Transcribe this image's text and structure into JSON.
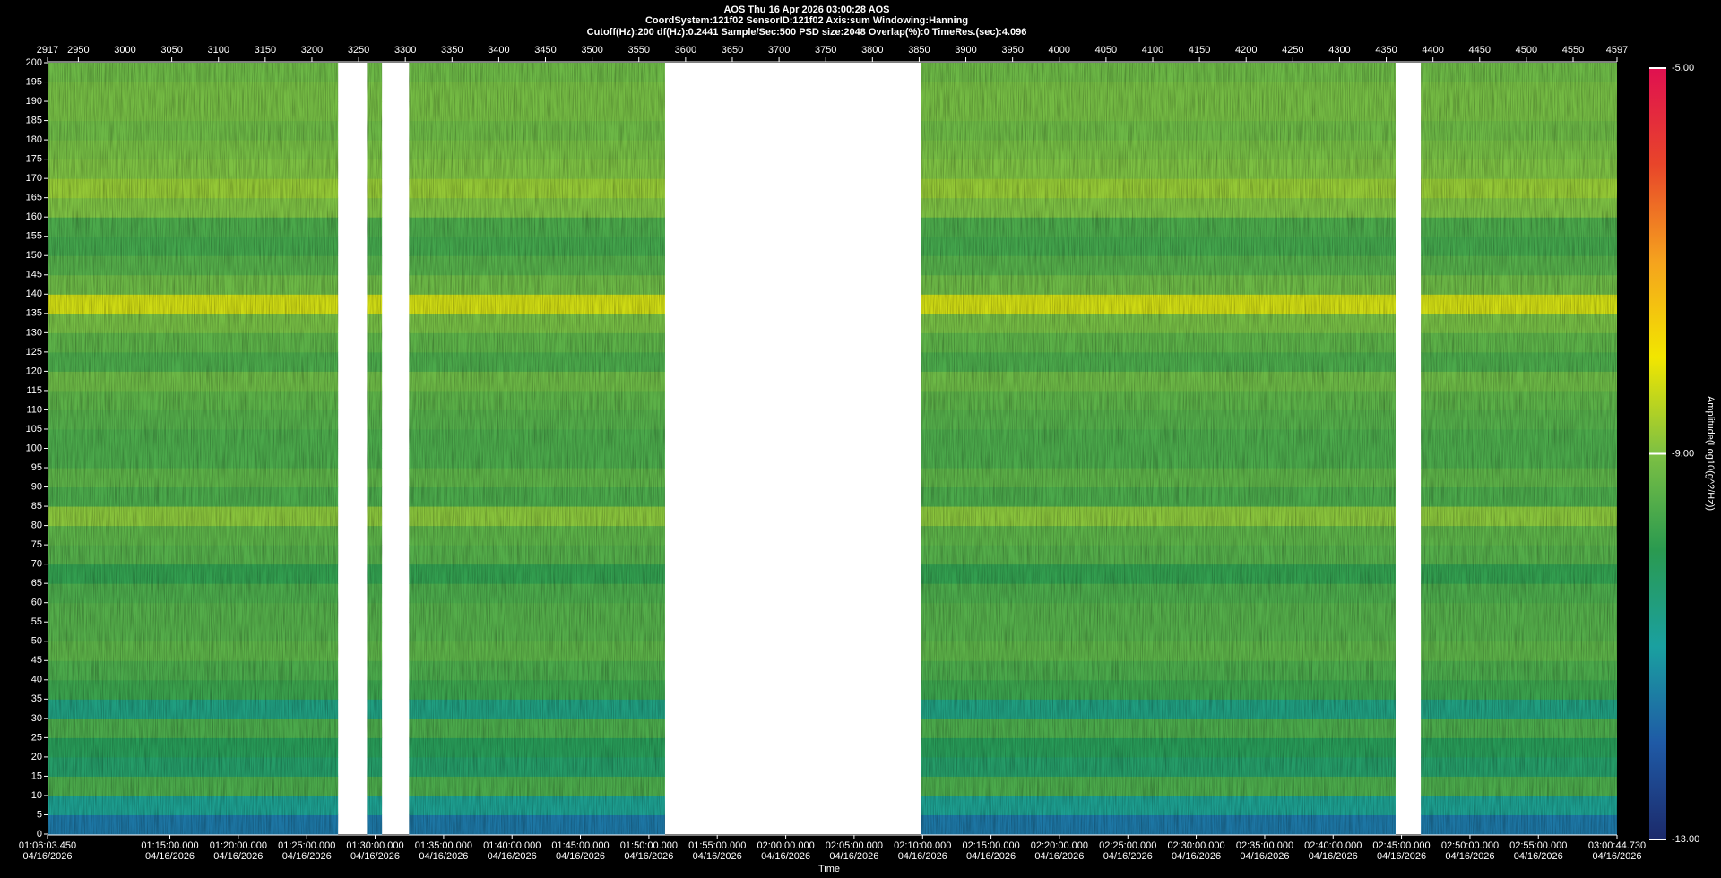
{
  "chart_data": {
    "type": "heatmap",
    "title": "AOS  Thu 16 Apr 2026 03:00:28  AOS",
    "subtitle": "CoordSystem:121f02   SensorID:121f02   Axis:sum    Windowing:Hanning",
    "settings_line": "Cutoff(Hz):200    df(Hz):0.2441    Sample/Sec:500    PSD size:2048    Overlap(%):0    TimeRes.(sec):4.096",
    "x_label": "Time",
    "colorbar_label": "Amplitude(Log10(g^2/Hz))",
    "xlim": [
      2917,
      4597
    ],
    "xticks": [
      2917,
      2950,
      3000,
      3050,
      3100,
      3150,
      3200,
      3250,
      3300,
      3350,
      3400,
      3450,
      3500,
      3550,
      3600,
      3650,
      3700,
      3750,
      3800,
      3850,
      3900,
      3950,
      4000,
      4050,
      4100,
      4150,
      4200,
      4250,
      4300,
      4350,
      4400,
      4450,
      4500,
      4550,
      4597
    ],
    "x2ticks": [
      {
        "value": 2917,
        "label": "01:06:03.450"
      },
      {
        "value": 3048,
        "label": "01:15:00.000"
      },
      {
        "value": 3121.2,
        "label": "01:20:00.000"
      },
      {
        "value": 3194.5,
        "label": "01:25:00.000"
      },
      {
        "value": 3267.7,
        "label": "01:30:00.000"
      },
      {
        "value": 3341,
        "label": "01:35:00.000"
      },
      {
        "value": 3414.2,
        "label": "01:40:00.000"
      },
      {
        "value": 3487.4,
        "label": "01:45:00.000"
      },
      {
        "value": 3560.7,
        "label": "01:50:00.000"
      },
      {
        "value": 3633.9,
        "label": "01:55:00.000"
      },
      {
        "value": 3707.2,
        "label": "02:00:00.000"
      },
      {
        "value": 3780.4,
        "label": "02:05:00.000"
      },
      {
        "value": 3853.7,
        "label": "02:10:00.000"
      },
      {
        "value": 3926.9,
        "label": "02:15:00.000"
      },
      {
        "value": 4000.1,
        "label": "02:20:00.000"
      },
      {
        "value": 4073.4,
        "label": "02:25:00.000"
      },
      {
        "value": 4146.6,
        "label": "02:30:00.000"
      },
      {
        "value": 4219.9,
        "label": "02:35:00.000"
      },
      {
        "value": 4293.1,
        "label": "02:40:00.000"
      },
      {
        "value": 4366.3,
        "label": "02:45:00.000"
      },
      {
        "value": 4439.6,
        "label": "02:50:00.000"
      },
      {
        "value": 4512.8,
        "label": "02:55:00.000"
      },
      {
        "value": 4597,
        "label": "03:00:44.730"
      }
    ],
    "x2tick_date": "04/16/2026",
    "ylim": [
      0,
      200
    ],
    "yticks": [
      0,
      5,
      10,
      15,
      20,
      25,
      30,
      35,
      40,
      45,
      50,
      55,
      60,
      65,
      70,
      75,
      80,
      85,
      90,
      95,
      100,
      105,
      110,
      115,
      120,
      125,
      130,
      135,
      140,
      145,
      150,
      155,
      160,
      165,
      170,
      175,
      180,
      185,
      190,
      195,
      200
    ],
    "bands": [
      0,
      5,
      10,
      15,
      20,
      25,
      30,
      35,
      40,
      45,
      50,
      55,
      60,
      65,
      70,
      75,
      80,
      85,
      90,
      95,
      100,
      105,
      110,
      115,
      120,
      125,
      130,
      135,
      140,
      145,
      150,
      155,
      160,
      165,
      170,
      175,
      180,
      185,
      190,
      195,
      200
    ],
    "segments": [
      [
        2917,
        3228
      ],
      [
        3259,
        3275
      ],
      [
        3304,
        3578
      ],
      [
        3852,
        4360
      ],
      [
        4387,
        4597
      ]
    ],
    "z": [
      -11.6,
      -10.8,
      -9.6,
      -10.3,
      -10.1,
      -9.6,
      -10.6,
      -9.8,
      -9.6,
      -9.4,
      -9.5,
      -9.5,
      -9.6,
      -9.9,
      -9.5,
      -9.4,
      -8.9,
      -9.6,
      -9.4,
      -9.6,
      -9.6,
      -9.5,
      -9.4,
      -9.2,
      -9.6,
      -9.4,
      -9.1,
      -8.3,
      -9.2,
      -9.5,
      -9.7,
      -9.6,
      -9.0,
      -8.8,
      -9.0,
      -9.1,
      -9.2,
      -9.1,
      -9.1,
      -9.2
    ],
    "zlim": [
      -13,
      -5
    ],
    "zticks": [
      {
        "value": -5,
        "label": "-5.00"
      },
      {
        "value": -9,
        "label": "-9.00"
      },
      {
        "value": -13,
        "label": "-13.00"
      }
    ],
    "colormap": [
      "#1c2a6b",
      "#1f5aa6",
      "#1aa0a0",
      "#2a9a50",
      "#7dc043",
      "#f2e600",
      "#f5a21e",
      "#e8452a",
      "#e01050"
    ],
    "gap_color": "#ffffff"
  }
}
